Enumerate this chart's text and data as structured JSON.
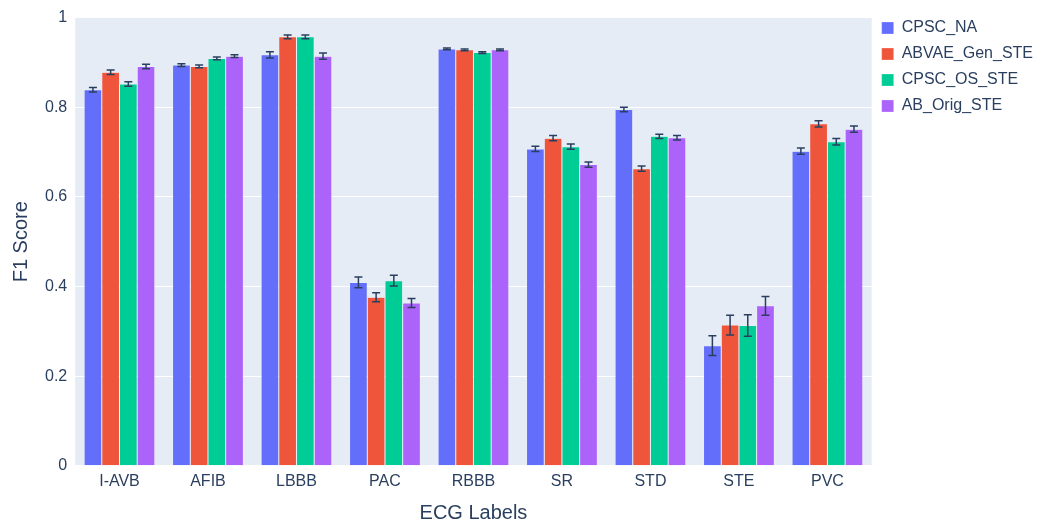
{
  "chart_data": {
    "type": "bar",
    "xlabel": "ECG Labels",
    "ylabel": "F1 Score",
    "categories": [
      "I-AVB",
      "AFIB",
      "LBBB",
      "PAC",
      "RBBB",
      "SR",
      "STD",
      "STE",
      "PVC"
    ],
    "series": [
      {
        "name": "CPSC_NA",
        "color": "#636efa",
        "values": [
          0.839,
          0.894,
          0.917,
          0.409,
          0.93,
          0.707,
          0.795,
          0.268,
          0.702
        ],
        "errors": [
          0.005,
          0.003,
          0.007,
          0.012,
          0.002,
          0.006,
          0.005,
          0.022,
          0.007
        ]
      },
      {
        "name": "ABVAE_Gen_STE",
        "color": "#ef553b",
        "values": [
          0.878,
          0.891,
          0.957,
          0.376,
          0.928,
          0.731,
          0.663,
          0.314,
          0.763
        ],
        "errors": [
          0.005,
          0.003,
          0.004,
          0.01,
          0.002,
          0.006,
          0.006,
          0.022,
          0.007
        ]
      },
      {
        "name": "CPSC_OS_STE",
        "color": "#00cc96",
        "values": [
          0.852,
          0.909,
          0.957,
          0.413,
          0.922,
          0.712,
          0.735,
          0.313,
          0.723
        ],
        "errors": [
          0.005,
          0.003,
          0.004,
          0.012,
          0.002,
          0.006,
          0.005,
          0.024,
          0.007
        ]
      },
      {
        "name": "AB_Orig_STE",
        "color": "#ab63fa",
        "values": [
          0.891,
          0.914,
          0.914,
          0.363,
          0.928,
          0.672,
          0.732,
          0.357,
          0.751
        ],
        "errors": [
          0.005,
          0.003,
          0.007,
          0.01,
          0.002,
          0.006,
          0.005,
          0.021,
          0.007
        ]
      }
    ],
    "ylim": [
      0,
      1
    ],
    "yticks": [
      0,
      0.2,
      0.4,
      0.6,
      0.8,
      1
    ],
    "grid": "y",
    "legend": "top right"
  }
}
